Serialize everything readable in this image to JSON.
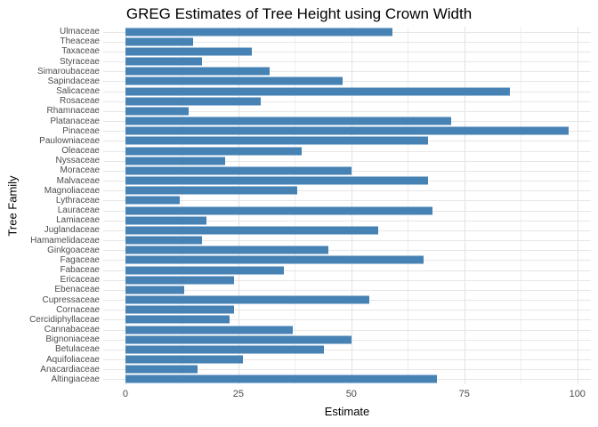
{
  "chart_data": {
    "type": "bar",
    "orientation": "horizontal",
    "title": "GREG Estimates of Tree Height using Crown Width",
    "xlabel": "Estimate",
    "ylabel": "Tree Family",
    "bar_color": "#4682B4",
    "grid": "on",
    "background_color": "#ffffff",
    "x_ticks": [
      0,
      25,
      50,
      75,
      100
    ],
    "x_minor_gridlines": [
      12.5,
      37.5,
      62.5,
      87.5
    ],
    "xlim_data": [
      0,
      100
    ],
    "xlim_display": [
      -4.9,
      103.0
    ],
    "categories_top_to_bottom": [
      "Ulmaceae",
      "Theaceae",
      "Taxaceae",
      "Styraceae",
      "Simaroubaceae",
      "Sapindaceae",
      "Salicaceae",
      "Rosaceae",
      "Rhamnaceae",
      "Platanaceae",
      "Pinaceae",
      "Paulowniaceae",
      "Oleaceae",
      "Nyssaceae",
      "Moraceae",
      "Malvaceae",
      "Magnoliaceae",
      "Lythraceae",
      "Lauraceae",
      "Lamiaceae",
      "Juglandaceae",
      "Hamamelidaceae",
      "Ginkgoaceae",
      "Fagaceae",
      "Fabaceae",
      "Ericaceae",
      "Ebenaceae",
      "Cupressaceae",
      "Cornaceae",
      "Cercidiphyllaceae",
      "Cannabaceae",
      "Bignoniaceae",
      "Betulaceae",
      "Aquifoliaceae",
      "Anacardiaceae",
      "Altingiaceae"
    ],
    "values": [
      59,
      15,
      28,
      17,
      32,
      48,
      85,
      30,
      14,
      72,
      98,
      67,
      39,
      22,
      50,
      67,
      38,
      12,
      68,
      18,
      56,
      17,
      45,
      66,
      35,
      24,
      13,
      54,
      24,
      23,
      37,
      50,
      44,
      26,
      16,
      69
    ]
  }
}
